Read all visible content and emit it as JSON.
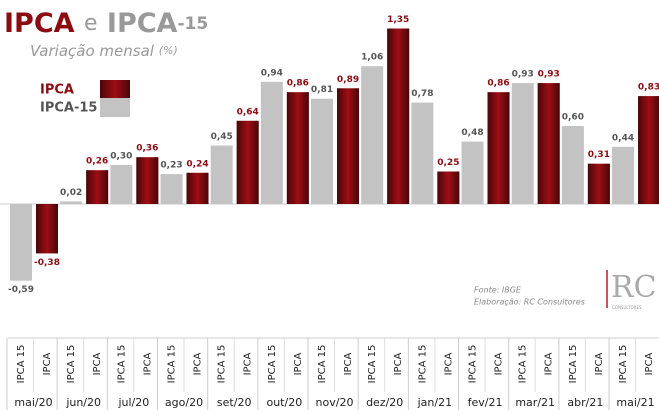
{
  "chart_data": {
    "type": "bar",
    "title_parts": [
      "IPCA",
      "e",
      "IPCA",
      "-15"
    ],
    "subtitle_parts": [
      "Variação mensal",
      "(%)"
    ],
    "categories": [
      "mai/20",
      "jun/20",
      "jul/20",
      "ago/20",
      "set/20",
      "out/20",
      "nov/20",
      "dez/20",
      "jan/21",
      "fev/21",
      "mar/21",
      "abr/21",
      "mai/21"
    ],
    "bar_labels": [
      "IPCA 15",
      "IPCA"
    ],
    "series": [
      {
        "name": "IPCA-15",
        "color": "#c3c3c3",
        "label_color": "#555555",
        "values": [
          -0.59,
          0.02,
          0.3,
          0.23,
          0.45,
          0.94,
          0.81,
          1.06,
          0.78,
          0.48,
          0.93,
          0.6,
          0.44
        ],
        "value_labels": [
          "-0,59",
          "0,02",
          "0,30",
          "0,23",
          "0,45",
          "0,94",
          "0,81",
          "1,06",
          "0,78",
          "0,48",
          "0,93",
          "0,60",
          "0,44"
        ]
      },
      {
        "name": "IPCA",
        "color": "#9e0e14",
        "label_color": "#8b0d12",
        "values": [
          -0.38,
          0.26,
          0.36,
          0.24,
          0.64,
          0.86,
          0.89,
          1.35,
          0.25,
          0.86,
          0.93,
          0.31,
          0.83
        ],
        "value_labels": [
          "-0,38",
          "0,26",
          "0,36",
          "0,24",
          "0,64",
          "0,86",
          "0,89",
          "1,35",
          "0,25",
          "0,86",
          "0,93",
          "0,31",
          "0,83"
        ]
      }
    ],
    "ylim": [
      -0.7,
      1.45
    ],
    "source": "Fonte: IBGE",
    "credit": "Elaboração: RC Consultores",
    "logo": "RC",
    "logo_sub": "CONSULTORES"
  }
}
